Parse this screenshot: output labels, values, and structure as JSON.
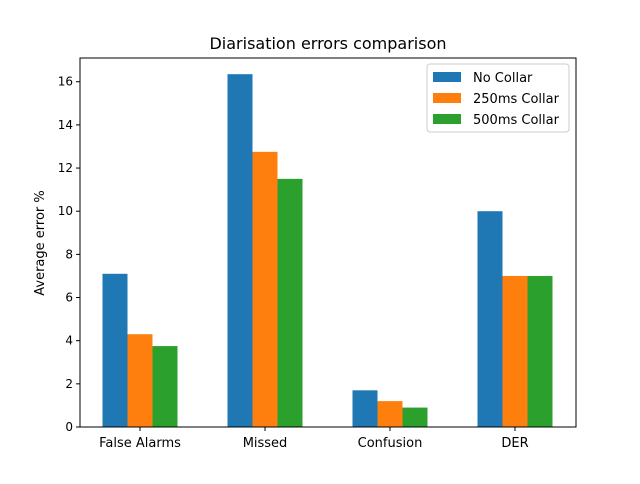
{
  "chart_data": {
    "type": "bar",
    "title": "Diarisation errors comparison",
    "xlabel": "",
    "ylabel": "Average error %",
    "categories": [
      "False Alarms",
      "Missed",
      "Confusion",
      "DER"
    ],
    "series": [
      {
        "name": "No Collar",
        "values": [
          7.1,
          16.35,
          1.7,
          10.0
        ],
        "color": "#1f77b4"
      },
      {
        "name": "250ms Collar",
        "values": [
          4.3,
          12.75,
          1.2,
          7.0
        ],
        "color": "#ff7f0e"
      },
      {
        "name": "500ms Collar",
        "values": [
          3.75,
          11.5,
          0.9,
          7.0
        ],
        "color": "#2ca02c"
      }
    ],
    "ylim": [
      0,
      17.1
    ],
    "yticks": [
      0,
      2,
      4,
      6,
      8,
      10,
      12,
      14,
      16
    ],
    "grid": false,
    "legend_position": "top-right"
  }
}
